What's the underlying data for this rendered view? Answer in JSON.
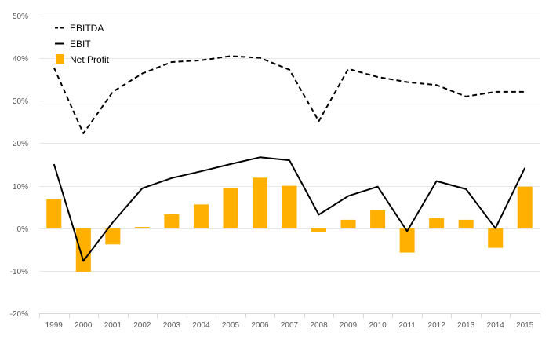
{
  "chart_data": {
    "type": "bar",
    "categories": [
      "1999",
      "2000",
      "2001",
      "2002",
      "2003",
      "2004",
      "2005",
      "2006",
      "2007",
      "2008",
      "2009",
      "2010",
      "2011",
      "2012",
      "2013",
      "2014",
      "2015"
    ],
    "y_ticks": [
      "50%",
      "40%",
      "30%",
      "20%",
      "10%",
      "0%",
      "-10%",
      "-20%"
    ],
    "ylim": [
      -20,
      50
    ],
    "grid": true,
    "legend_position": "top-left",
    "series": [
      {
        "name": "EBITDA",
        "type": "line",
        "style": "dashed",
        "color": "#000000",
        "values": [
          37.8,
          22.3,
          32.1,
          36.4,
          39.1,
          39.5,
          40.5,
          40.1,
          37.3,
          25.2,
          37.5,
          35.6,
          34.4,
          33.7,
          31.0,
          32.1,
          32.1
        ]
      },
      {
        "name": "EBIT",
        "type": "line",
        "style": "solid",
        "color": "#000000",
        "values": [
          15.1,
          -7.7,
          1.4,
          9.4,
          11.8,
          13.4,
          15.1,
          16.7,
          16.0,
          3.2,
          7.6,
          9.8,
          -0.7,
          11.1,
          9.2,
          0.0,
          14.2
        ]
      },
      {
        "name": "Net Profit",
        "type": "bar",
        "color": "#FFB000",
        "values": [
          6.8,
          -10.2,
          -3.8,
          0.3,
          3.3,
          5.6,
          9.4,
          11.9,
          10.0,
          -0.9,
          2.0,
          4.2,
          -5.7,
          2.4,
          2.0,
          -4.6,
          9.8
        ]
      }
    ]
  }
}
